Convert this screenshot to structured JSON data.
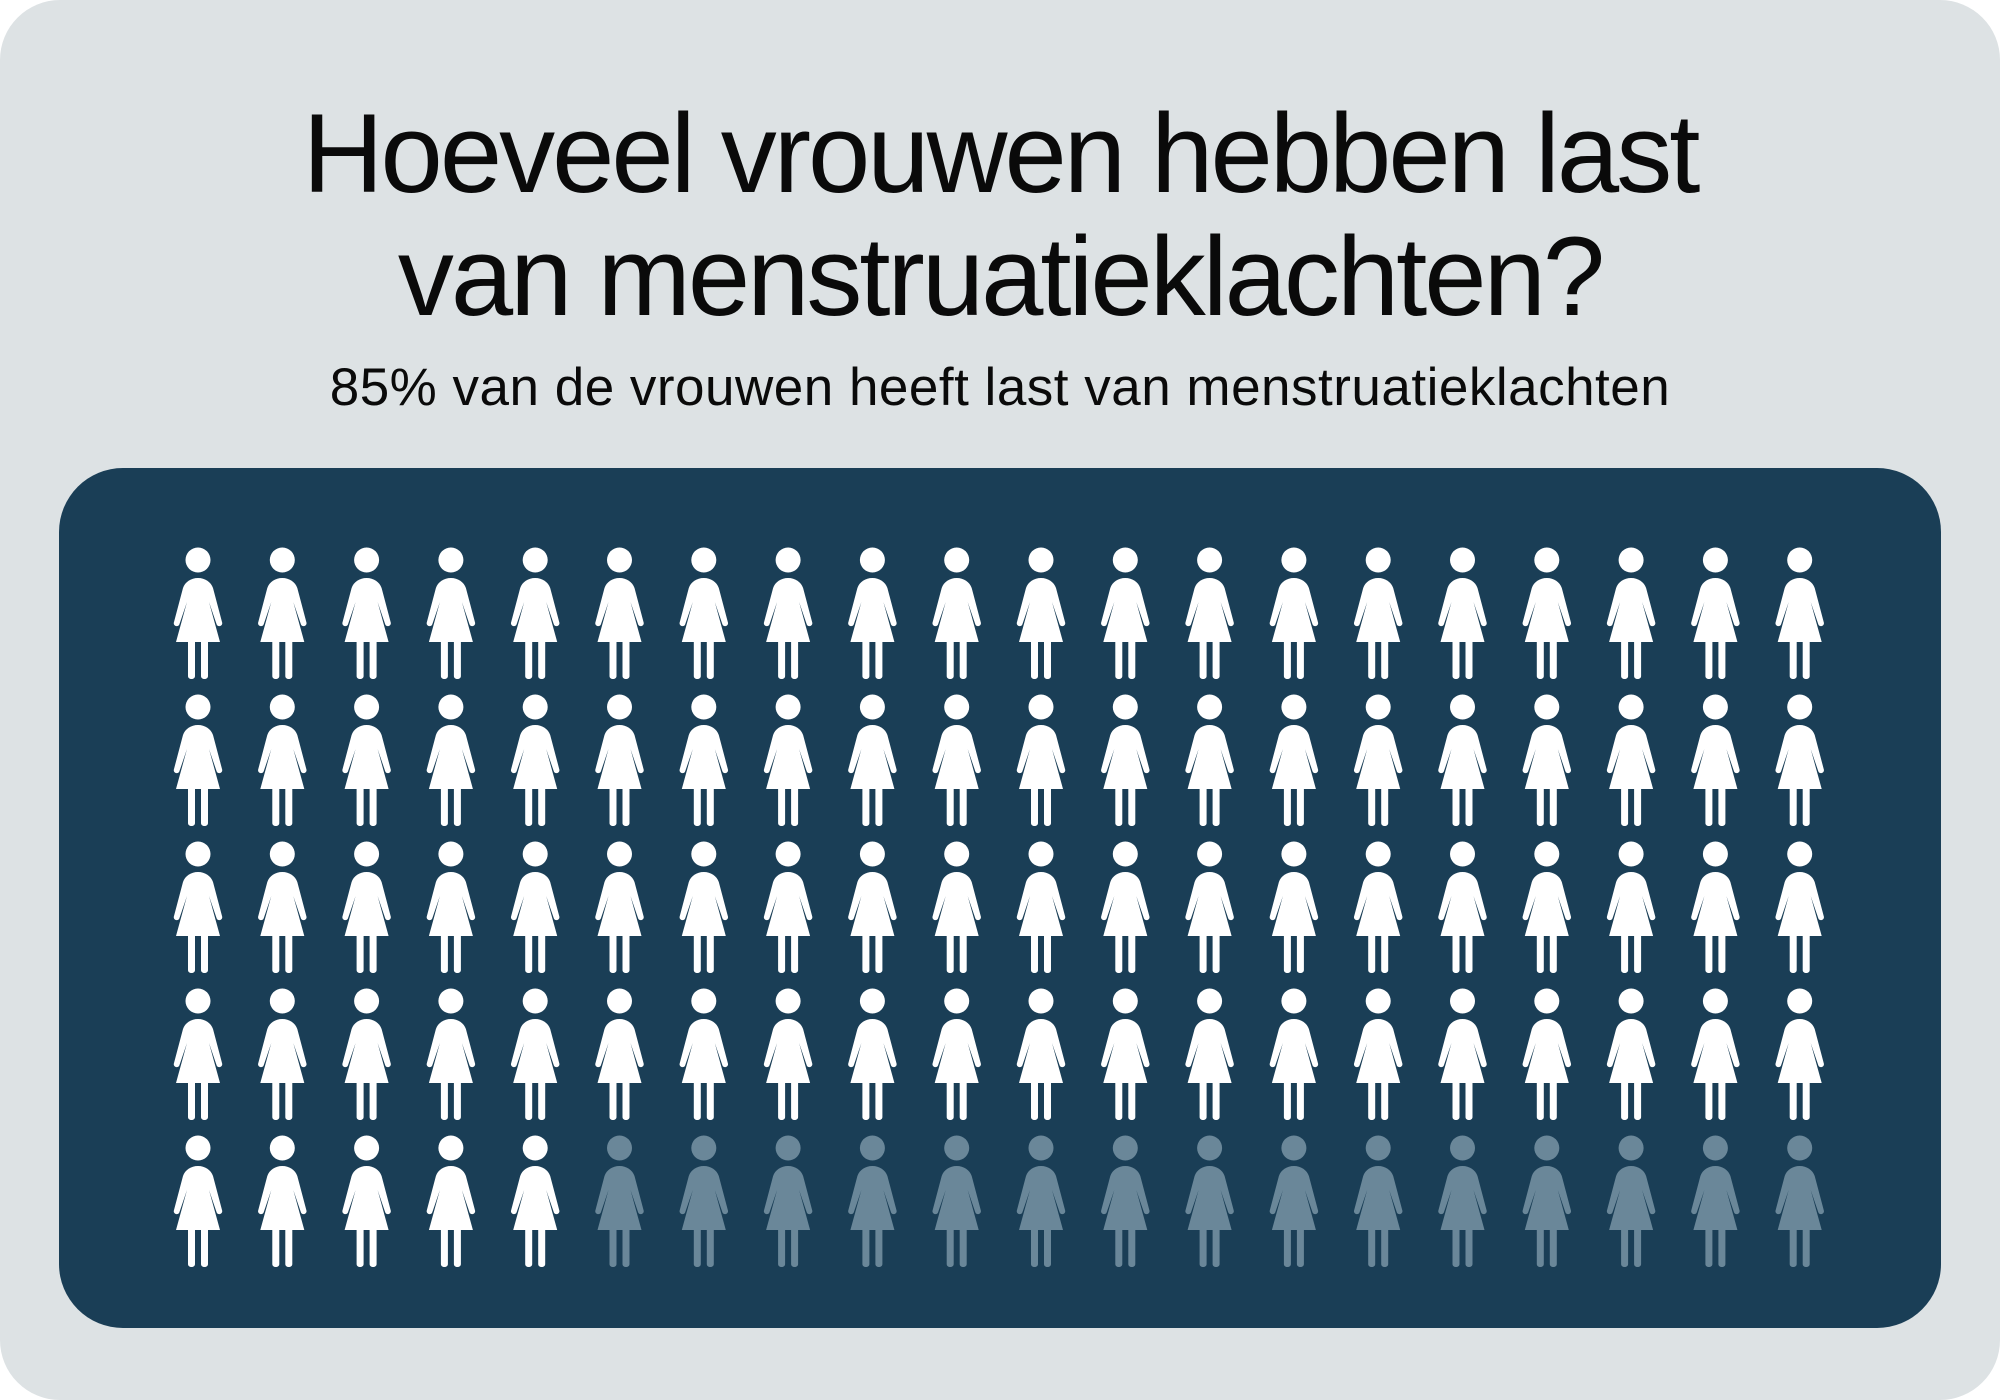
{
  "title_lines": [
    "Hoeveel vrouwen hebben last",
    "van menstruatieklachten?"
  ],
  "subtitle": "85% van de vrouwen heeft last van menstruatieklachten",
  "colors": {
    "background": "#dde2e4",
    "panel": "#1a3e56",
    "filled_icon": "#ffffff",
    "unfilled_icon": "#6a8799",
    "text": "#0a0a0a"
  },
  "chart_data": {
    "type": "pictogram",
    "icon": "woman-icon",
    "total": 100,
    "highlighted": 85,
    "rows": 5,
    "columns": 20
  }
}
